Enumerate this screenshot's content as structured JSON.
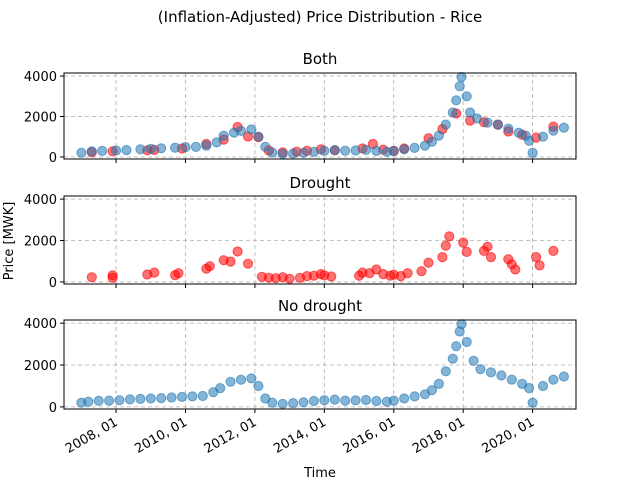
{
  "figure": {
    "title": "(Inflation-Adjusted) Price Distribution - Rice",
    "xlabel": "Time",
    "ylabel": "Price [MWK]"
  },
  "colors": {
    "drought": "#ff0000",
    "no_drought": "#1f77b4"
  },
  "chart_data": [
    {
      "type": "scatter",
      "title": "Both",
      "ylim": [
        -100,
        4150
      ],
      "yticks": [
        0,
        2000,
        4000
      ],
      "grid": true,
      "series": [
        {
          "color": "#ff0000",
          "points": [
            [
              2007.3,
              230
            ],
            [
              2007.9,
              280
            ],
            [
              2008.9,
              330
            ],
            [
              2009.1,
              350
            ],
            [
              2009.9,
              420
            ],
            [
              2010.6,
              640
            ],
            [
              2011.1,
              860
            ],
            [
              2011.5,
              1480
            ],
            [
              2011.8,
              1010
            ],
            [
              2012.1,
              980
            ],
            [
              2012.4,
              320
            ],
            [
              2012.8,
              230
            ],
            [
              2013.2,
              260
            ],
            [
              2013.5,
              300
            ],
            [
              2013.9,
              380
            ],
            [
              2014.3,
              330
            ],
            [
              2015.1,
              420
            ],
            [
              2015.4,
              640
            ],
            [
              2015.7,
              360
            ],
            [
              2016.0,
              300
            ],
            [
              2016.3,
              420
            ],
            [
              2017.0,
              930
            ],
            [
              2017.4,
              1380
            ],
            [
              2017.8,
              2150
            ],
            [
              2018.2,
              1800
            ],
            [
              2018.6,
              1720
            ],
            [
              2019.0,
              1600
            ],
            [
              2019.3,
              1260
            ],
            [
              2019.7,
              1100
            ],
            [
              2020.1,
              960
            ],
            [
              2020.6,
              1500
            ]
          ]
        },
        {
          "color": "#1f77b4",
          "points": [
            [
              2007.0,
              210
            ],
            [
              2007.3,
              280
            ],
            [
              2007.6,
              300
            ],
            [
              2008.0,
              320
            ],
            [
              2008.3,
              340
            ],
            [
              2008.7,
              380
            ],
            [
              2009.0,
              400
            ],
            [
              2009.3,
              430
            ],
            [
              2009.7,
              460
            ],
            [
              2010.0,
              490
            ],
            [
              2010.3,
              500
            ],
            [
              2010.6,
              560
            ],
            [
              2010.9,
              720
            ],
            [
              2011.1,
              1050
            ],
            [
              2011.4,
              1200
            ],
            [
              2011.6,
              1290
            ],
            [
              2011.9,
              1360
            ],
            [
              2012.1,
              1000
            ],
            [
              2012.3,
              500
            ],
            [
              2012.5,
              220
            ],
            [
              2012.8,
              150
            ],
            [
              2013.1,
              170
            ],
            [
              2013.4,
              200
            ],
            [
              2013.7,
              250
            ],
            [
              2014.0,
              300
            ],
            [
              2014.3,
              340
            ],
            [
              2014.6,
              310
            ],
            [
              2014.9,
              320
            ],
            [
              2015.2,
              350
            ],
            [
              2015.5,
              300
            ],
            [
              2015.8,
              260
            ],
            [
              2016.0,
              290
            ],
            [
              2016.3,
              380
            ],
            [
              2016.6,
              450
            ],
            [
              2016.9,
              560
            ],
            [
              2017.1,
              750
            ],
            [
              2017.3,
              1050
            ],
            [
              2017.5,
              1600
            ],
            [
              2017.7,
              2200
            ],
            [
              2017.8,
              2800
            ],
            [
              2017.9,
              3500
            ],
            [
              2017.95,
              3950
            ],
            [
              2018.1,
              3000
            ],
            [
              2018.2,
              2200
            ],
            [
              2018.4,
              1900
            ],
            [
              2018.7,
              1700
            ],
            [
              2019.0,
              1600
            ],
            [
              2019.3,
              1400
            ],
            [
              2019.6,
              1200
            ],
            [
              2019.8,
              1050
            ],
            [
              2019.9,
              800
            ],
            [
              2020.0,
              200
            ],
            [
              2020.3,
              1000
            ],
            [
              2020.6,
              1300
            ],
            [
              2020.9,
              1450
            ]
          ]
        }
      ]
    },
    {
      "type": "scatter",
      "title": "Drought",
      "ylim": [
        -100,
        4150
      ],
      "yticks": [
        0,
        2000,
        4000
      ],
      "grid": true,
      "series": [
        {
          "color": "#ff0000",
          "points": [
            [
              2007.3,
              230
            ],
            [
              2007.9,
              200
            ],
            [
              2007.9,
              320
            ],
            [
              2008.9,
              360
            ],
            [
              2009.1,
              450
            ],
            [
              2009.7,
              330
            ],
            [
              2009.8,
              420
            ],
            [
              2010.6,
              640
            ],
            [
              2010.7,
              760
            ],
            [
              2011.1,
              1050
            ],
            [
              2011.3,
              980
            ],
            [
              2011.5,
              1470
            ],
            [
              2011.8,
              880
            ],
            [
              2012.2,
              250
            ],
            [
              2012.4,
              200
            ],
            [
              2012.6,
              180
            ],
            [
              2012.8,
              230
            ],
            [
              2013.0,
              150
            ],
            [
              2013.3,
              200
            ],
            [
              2013.5,
              280
            ],
            [
              2013.7,
              300
            ],
            [
              2013.9,
              380
            ],
            [
              2014.0,
              320
            ],
            [
              2014.2,
              260
            ],
            [
              2015.0,
              300
            ],
            [
              2015.1,
              450
            ],
            [
              2015.3,
              420
            ],
            [
              2015.5,
              600
            ],
            [
              2015.7,
              380
            ],
            [
              2015.9,
              300
            ],
            [
              2016.0,
              350
            ],
            [
              2016.2,
              280
            ],
            [
              2016.4,
              420
            ],
            [
              2016.8,
              520
            ],
            [
              2017.0,
              930
            ],
            [
              2017.4,
              1200
            ],
            [
              2017.5,
              1750
            ],
            [
              2017.6,
              2200
            ],
            [
              2018.0,
              1900
            ],
            [
              2018.1,
              1450
            ],
            [
              2018.6,
              1500
            ],
            [
              2018.7,
              1700
            ],
            [
              2018.8,
              1200
            ],
            [
              2019.3,
              1100
            ],
            [
              2019.4,
              850
            ],
            [
              2019.5,
              600
            ],
            [
              2020.1,
              1200
            ],
            [
              2020.2,
              800
            ],
            [
              2020.6,
              1500
            ]
          ]
        }
      ]
    },
    {
      "type": "scatter",
      "title": "No drought",
      "ylim": [
        -100,
        4150
      ],
      "yticks": [
        0,
        2000,
        4000
      ],
      "xticks": [
        "2008, 01",
        "2010, 01",
        "2012, 01",
        "2014, 01",
        "2016, 01",
        "2018, 01",
        "2020, 01"
      ],
      "xlim": [
        "2006, 07",
        "2021, 04"
      ],
      "grid": true,
      "series": [
        {
          "color": "#1f77b4",
          "points": [
            [
              2007.0,
              200
            ],
            [
              2007.2,
              250
            ],
            [
              2007.5,
              290
            ],
            [
              2007.8,
              300
            ],
            [
              2008.1,
              320
            ],
            [
              2008.4,
              360
            ],
            [
              2008.7,
              380
            ],
            [
              2009.0,
              400
            ],
            [
              2009.3,
              420
            ],
            [
              2009.6,
              450
            ],
            [
              2009.9,
              480
            ],
            [
              2010.2,
              500
            ],
            [
              2010.5,
              520
            ],
            [
              2010.8,
              700
            ],
            [
              2011.0,
              900
            ],
            [
              2011.3,
              1200
            ],
            [
              2011.6,
              1300
            ],
            [
              2011.9,
              1360
            ],
            [
              2012.1,
              1000
            ],
            [
              2012.3,
              400
            ],
            [
              2012.5,
              200
            ],
            [
              2012.8,
              150
            ],
            [
              2013.1,
              180
            ],
            [
              2013.4,
              220
            ],
            [
              2013.7,
              280
            ],
            [
              2014.0,
              320
            ],
            [
              2014.3,
              350
            ],
            [
              2014.6,
              300
            ],
            [
              2014.9,
              310
            ],
            [
              2015.2,
              330
            ],
            [
              2015.5,
              280
            ],
            [
              2015.8,
              250
            ],
            [
              2016.0,
              300
            ],
            [
              2016.3,
              400
            ],
            [
              2016.6,
              500
            ],
            [
              2016.9,
              600
            ],
            [
              2017.1,
              800
            ],
            [
              2017.3,
              1100
            ],
            [
              2017.5,
              1700
            ],
            [
              2017.7,
              2300
            ],
            [
              2017.8,
              2900
            ],
            [
              2017.9,
              3600
            ],
            [
              2017.95,
              3950
            ],
            [
              2018.1,
              3100
            ],
            [
              2018.3,
              2200
            ],
            [
              2018.5,
              1800
            ],
            [
              2018.8,
              1650
            ],
            [
              2019.1,
              1500
            ],
            [
              2019.4,
              1300
            ],
            [
              2019.7,
              1100
            ],
            [
              2019.9,
              900
            ],
            [
              2020.0,
              200
            ],
            [
              2020.3,
              1000
            ],
            [
              2020.6,
              1300
            ],
            [
              2020.9,
              1450
            ]
          ]
        }
      ]
    }
  ]
}
